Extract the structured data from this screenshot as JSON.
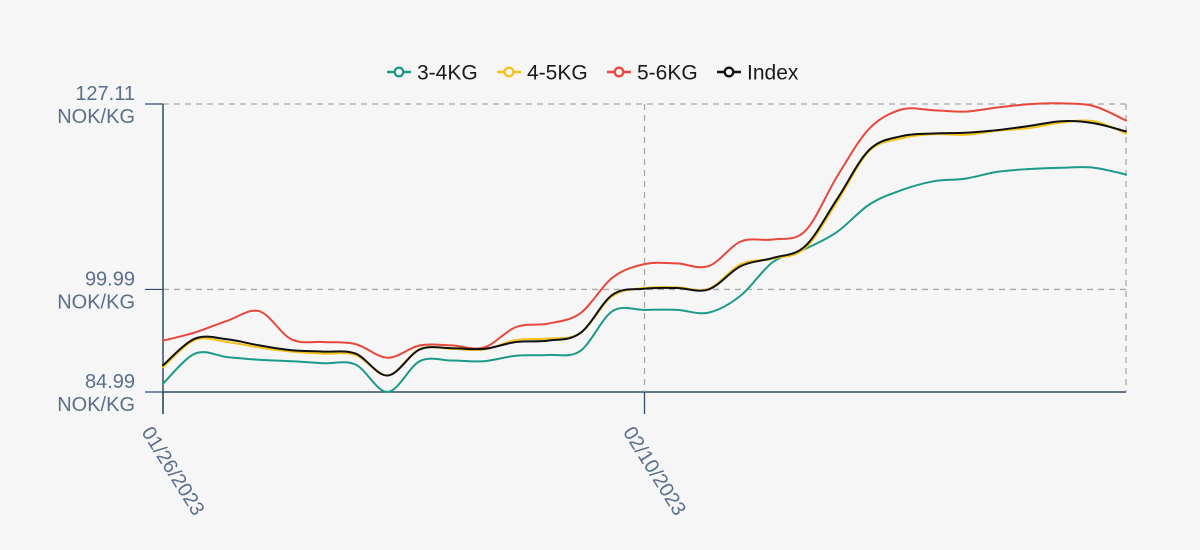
{
  "chart_data": {
    "type": "line",
    "x_labels": [
      "01/26/2023",
      "02/10/2023"
    ],
    "y_ticks": [
      {
        "value": 127.11,
        "label": "127.11",
        "unit": "NOK/KG"
      },
      {
        "value": 99.99,
        "label": "99.99",
        "unit": "NOK/KG"
      },
      {
        "value": 84.99,
        "label": "84.99",
        "unit": "NOK/KG"
      }
    ],
    "ylim": [
      84.99,
      127.11
    ],
    "grid": true,
    "legend_position": "top-center",
    "x": [
      "01/26",
      "01/27",
      "01/28",
      "01/29",
      "01/30",
      "01/31",
      "02/01",
      "02/02",
      "02/03",
      "02/04",
      "02/05",
      "02/06",
      "02/07",
      "02/08",
      "02/09",
      "02/10",
      "02/11",
      "02/12",
      "02/13",
      "02/14",
      "02/15",
      "02/16",
      "02/17",
      "02/18",
      "02/19",
      "02/20",
      "02/21",
      "02/22",
      "02/23",
      "02/24",
      "02/25"
    ],
    "series": [
      {
        "name": "3-4KG",
        "color": "#1a9a87",
        "values": [
          86.2,
          90.6,
          90.1,
          89.7,
          89.5,
          89.2,
          89.0,
          85.0,
          89.5,
          89.6,
          89.5,
          90.3,
          90.4,
          91.0,
          96.8,
          97.0,
          97.0,
          96.6,
          99.1,
          104.0,
          105.9,
          108.4,
          112.4,
          114.5,
          115.8,
          116.2,
          117.2,
          117.6,
          117.8,
          117.8,
          116.8
        ]
      },
      {
        "name": "4-5KG",
        "color": "#f2c21b",
        "values": [
          88.6,
          92.6,
          92.3,
          91.5,
          90.9,
          90.6,
          90.4,
          87.4,
          91.3,
          91.3,
          91.2,
          92.6,
          92.8,
          93.6,
          99.0,
          100.2,
          100.3,
          100.1,
          103.7,
          104.5,
          106.0,
          112.8,
          120.2,
          122.1,
          122.7,
          122.6,
          123.2,
          123.6,
          124.4,
          124.6,
          122.8
        ]
      },
      {
        "name": "5-6KG",
        "color": "#e8473c",
        "values": [
          92.5,
          93.7,
          95.4,
          96.8,
          92.7,
          92.3,
          92.0,
          90.0,
          91.8,
          91.8,
          91.5,
          94.5,
          95.0,
          96.5,
          101.7,
          103.7,
          103.8,
          103.4,
          107.0,
          107.3,
          108.5,
          116.5,
          123.5,
          126.3,
          126.2,
          126.0,
          126.6,
          127.1,
          127.2,
          126.8,
          124.7
        ]
      },
      {
        "name": "Index",
        "color": "#111111",
        "values": [
          88.9,
          92.8,
          92.7,
          91.8,
          91.1,
          90.9,
          90.6,
          87.4,
          91.2,
          91.4,
          91.3,
          92.3,
          92.5,
          93.6,
          99.2,
          100.1,
          100.2,
          100.0,
          103.4,
          104.6,
          106.3,
          113.2,
          120.4,
          122.4,
          122.8,
          122.9,
          123.3,
          123.9,
          124.6,
          124.3,
          123.1
        ]
      }
    ]
  }
}
